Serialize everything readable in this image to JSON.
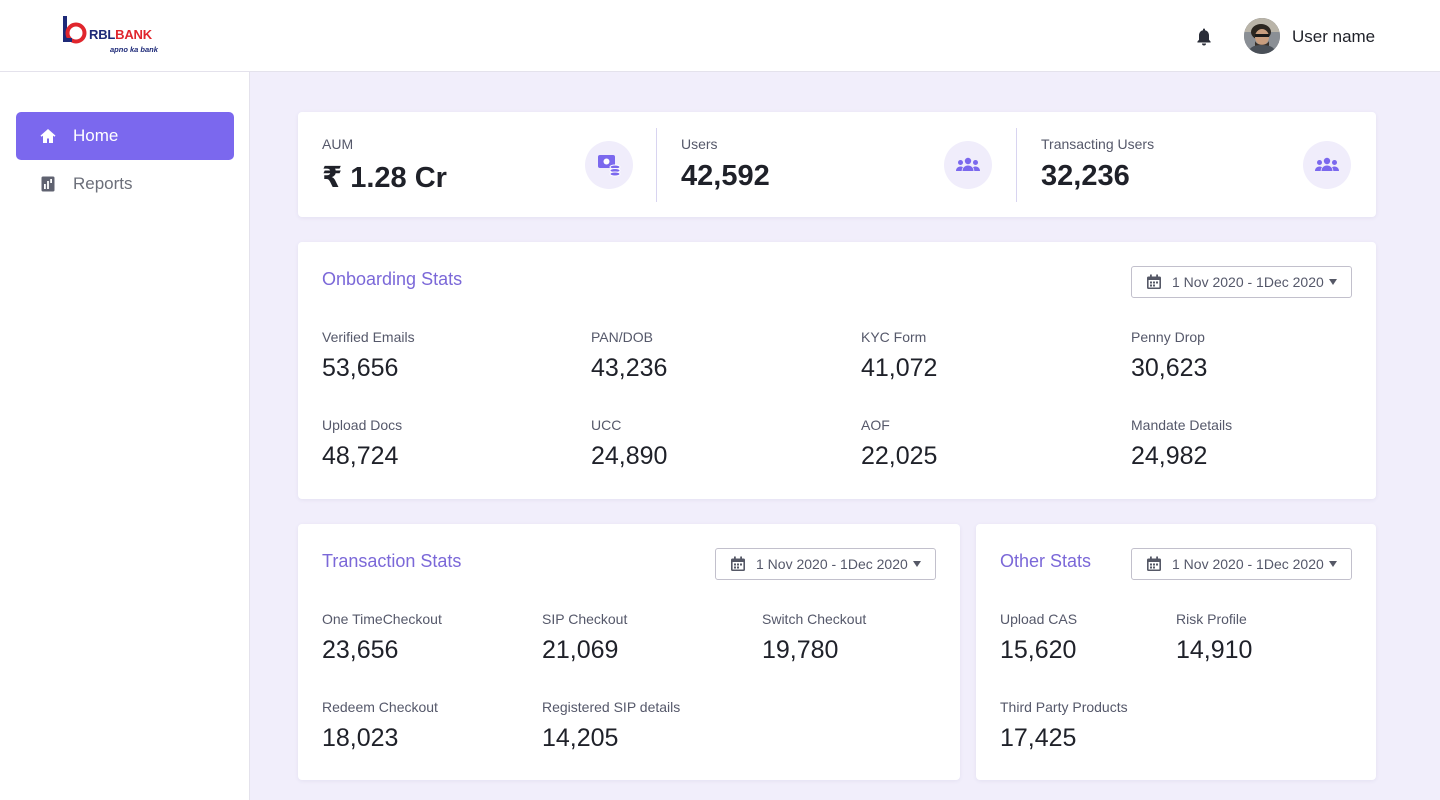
{
  "brand": {
    "name_part1": "RBL",
    "name_part2": "BANK",
    "tagline": "apno ka bank",
    "color_navy": "#1e2a78",
    "color_red": "#e0262d"
  },
  "header": {
    "notification_icon": "bell-icon",
    "user_name": "User name"
  },
  "sidebar": {
    "items": [
      {
        "label": "Home",
        "icon": "home-icon",
        "active": true
      },
      {
        "label": "Reports",
        "icon": "report-icon",
        "active": false
      }
    ]
  },
  "summary": {
    "items": [
      {
        "label": "AUM",
        "value": "₹ 1.28 Cr",
        "icon": "money-icon"
      },
      {
        "label": "Users",
        "value": "42,592",
        "icon": "users-icon"
      },
      {
        "label": "Transacting Users",
        "value": "32,236",
        "icon": "users-icon"
      }
    ]
  },
  "onboarding": {
    "title": "Onboarding Stats",
    "date_range": "1 Nov 2020 - 1Dec 2020",
    "stats": [
      {
        "label": "Verified Emails",
        "value": "53,656"
      },
      {
        "label": "PAN/DOB",
        "value": "43,236"
      },
      {
        "label": "KYC Form",
        "value": "41,072"
      },
      {
        "label": "Penny Drop",
        "value": "30,623"
      },
      {
        "label": "Upload Docs",
        "value": "48,724"
      },
      {
        "label": "UCC",
        "value": "24,890"
      },
      {
        "label": "AOF",
        "value": "22,025"
      },
      {
        "label": "Mandate Details",
        "value": "24,982"
      }
    ]
  },
  "transaction": {
    "title": "Transaction Stats",
    "date_range": "1 Nov 2020 - 1Dec 2020",
    "stats": [
      {
        "label": "One TimeCheckout",
        "value": "23,656"
      },
      {
        "label": "SIP Checkout",
        "value": "21,069"
      },
      {
        "label": "Switch Checkout",
        "value": "19,780"
      },
      {
        "label": "Redeem Checkout",
        "value": "18,023"
      },
      {
        "label": "Registered SIP details",
        "value": "14,205"
      }
    ]
  },
  "other": {
    "title": "Other Stats",
    "date_range": "1 Nov 2020 - 1Dec 2020",
    "stats": [
      {
        "label": "Upload CAS",
        "value": "15,620"
      },
      {
        "label": "Risk Profile",
        "value": "14,910"
      },
      {
        "label": "Third Party Products",
        "value": "17,425"
      }
    ]
  },
  "colors": {
    "accent": "#7b68ee",
    "title": "#7b68d8",
    "background": "#f1eefb"
  }
}
